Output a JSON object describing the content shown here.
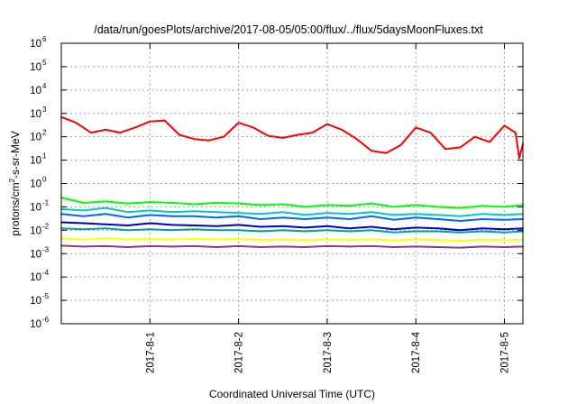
{
  "chart_data": {
    "type": "line",
    "title": "/data/run/goesPlots/archive/2017-08-05/05:00/flux/../flux/5daysMoonFluxes.txt",
    "xlabel": "Coordinated Universal Time (UTC)",
    "ylabel": "protons/cm²-s-sr-MeV",
    "ylabel_parts": {
      "pre": "protons/cm",
      "sup": "2",
      "post": "-s-sr-MeV"
    },
    "yscale": "log",
    "ylim": [
      1e-06,
      1000000.0
    ],
    "xlim": [
      "2017-07-31 00:00",
      "2017-08-05 05:00"
    ],
    "grid": true,
    "x_ticks": [
      {
        "value": "2017-08-01 00:00",
        "label": "2017-8-1"
      },
      {
        "value": "2017-08-02 00:00",
        "label": "2017-8-2"
      },
      {
        "value": "2017-08-03 00:00",
        "label": "2017-8-3"
      },
      {
        "value": "2017-08-04 00:00",
        "label": "2017-8-4"
      },
      {
        "value": "2017-08-05 00:00",
        "label": "2017-8-5"
      }
    ],
    "y_ticks": [
      {
        "value": 1e-06,
        "base": "10",
        "exp": "-6"
      },
      {
        "value": 1e-05,
        "base": "10",
        "exp": "-5"
      },
      {
        "value": 0.0001,
        "base": "10",
        "exp": "-4"
      },
      {
        "value": 0.001,
        "base": "10",
        "exp": "-3"
      },
      {
        "value": 0.01,
        "base": "10",
        "exp": "-2"
      },
      {
        "value": 0.1,
        "base": "10",
        "exp": "-1"
      },
      {
        "value": 1,
        "base": "10",
        "exp": "0"
      },
      {
        "value": 10,
        "base": "10",
        "exp": "1"
      },
      {
        "value": 100,
        "base": "10",
        "exp": "2"
      },
      {
        "value": 1000,
        "base": "10",
        "exp": "3"
      },
      {
        "value": 10000,
        "base": "10",
        "exp": "4"
      },
      {
        "value": 100000,
        "base": "10",
        "exp": "5"
      },
      {
        "value": 1000000,
        "base": "10",
        "exp": "6"
      }
    ],
    "series": [
      {
        "color": "#ff0000",
        "x": [
          "2017-07-31 00:00",
          "2017-07-31 04:00",
          "2017-07-31 08:00",
          "2017-07-31 12:00",
          "2017-07-31 16:00",
          "2017-07-31 20:00",
          "2017-08-01 00:00",
          "2017-08-01 04:00",
          "2017-08-01 08:00",
          "2017-08-01 12:00",
          "2017-08-01 16:00",
          "2017-08-01 20:00",
          "2017-08-02 00:00",
          "2017-08-02 04:00",
          "2017-08-02 08:00",
          "2017-08-02 12:00",
          "2017-08-02 16:00",
          "2017-08-02 20:00",
          "2017-08-03 00:00",
          "2017-08-03 04:00",
          "2017-08-03 08:00",
          "2017-08-03 12:00",
          "2017-08-03 16:00",
          "2017-08-03 20:00",
          "2017-08-04 00:00",
          "2017-08-04 04:00",
          "2017-08-04 08:00",
          "2017-08-04 12:00",
          "2017-08-04 16:00",
          "2017-08-04 20:00",
          "2017-08-05 00:00",
          "2017-08-05 03:00",
          "2017-08-05 04:00",
          "2017-08-05 05:00"
        ],
        "values": [
          700,
          400,
          150,
          200,
          150,
          250,
          450,
          500,
          120,
          80,
          70,
          100,
          400,
          250,
          110,
          90,
          120,
          150,
          350,
          200,
          80,
          25,
          20,
          45,
          250,
          150,
          30,
          35,
          100,
          60,
          300,
          150,
          12,
          50
        ]
      },
      {
        "color": "#00ff00",
        "x": [
          "2017-07-31 00:00",
          "2017-07-31 06:00",
          "2017-07-31 12:00",
          "2017-07-31 18:00",
          "2017-08-01 00:00",
          "2017-08-01 06:00",
          "2017-08-01 12:00",
          "2017-08-01 18:00",
          "2017-08-02 00:00",
          "2017-08-02 06:00",
          "2017-08-02 12:00",
          "2017-08-02 18:00",
          "2017-08-03 00:00",
          "2017-08-03 06:00",
          "2017-08-03 12:00",
          "2017-08-03 18:00",
          "2017-08-04 00:00",
          "2017-08-04 06:00",
          "2017-08-04 12:00",
          "2017-08-04 18:00",
          "2017-08-05 00:00",
          "2017-08-05 05:00"
        ],
        "values": [
          0.25,
          0.15,
          0.17,
          0.14,
          0.16,
          0.15,
          0.13,
          0.15,
          0.14,
          0.12,
          0.13,
          0.1,
          0.12,
          0.11,
          0.14,
          0.1,
          0.12,
          0.1,
          0.09,
          0.11,
          0.1,
          0.12
        ]
      },
      {
        "color": "#00c8c8",
        "x": [
          "2017-07-31 00:00",
          "2017-07-31 06:00",
          "2017-07-31 12:00",
          "2017-07-31 18:00",
          "2017-08-01 00:00",
          "2017-08-01 06:00",
          "2017-08-01 12:00",
          "2017-08-01 18:00",
          "2017-08-02 00:00",
          "2017-08-02 06:00",
          "2017-08-02 12:00",
          "2017-08-02 18:00",
          "2017-08-03 00:00",
          "2017-08-03 06:00",
          "2017-08-03 12:00",
          "2017-08-03 18:00",
          "2017-08-04 00:00",
          "2017-08-04 06:00",
          "2017-08-04 12:00",
          "2017-08-04 18:00",
          "2017-08-05 00:00",
          "2017-08-05 05:00"
        ],
        "values": [
          0.08,
          0.07,
          0.09,
          0.06,
          0.07,
          0.06,
          0.065,
          0.06,
          0.055,
          0.05,
          0.06,
          0.045,
          0.055,
          0.05,
          0.06,
          0.045,
          0.05,
          0.045,
          0.04,
          0.05,
          0.045,
          0.05
        ]
      },
      {
        "color": "#0064ff",
        "x": [
          "2017-07-31 00:00",
          "2017-07-31 06:00",
          "2017-07-31 12:00",
          "2017-07-31 18:00",
          "2017-08-01 00:00",
          "2017-08-01 06:00",
          "2017-08-01 12:00",
          "2017-08-01 18:00",
          "2017-08-02 00:00",
          "2017-08-02 06:00",
          "2017-08-02 12:00",
          "2017-08-02 18:00",
          "2017-08-03 00:00",
          "2017-08-03 06:00",
          "2017-08-03 12:00",
          "2017-08-03 18:00",
          "2017-08-04 00:00",
          "2017-08-04 06:00",
          "2017-08-04 12:00",
          "2017-08-04 18:00",
          "2017-08-05 00:00",
          "2017-08-05 05:00"
        ],
        "values": [
          0.05,
          0.04,
          0.05,
          0.035,
          0.045,
          0.04,
          0.04,
          0.035,
          0.04,
          0.03,
          0.035,
          0.03,
          0.035,
          0.03,
          0.04,
          0.028,
          0.035,
          0.03,
          0.025,
          0.03,
          0.028,
          0.03
        ]
      },
      {
        "color": "#0000c8",
        "x": [
          "2017-07-31 00:00",
          "2017-07-31 06:00",
          "2017-07-31 12:00",
          "2017-07-31 18:00",
          "2017-08-01 00:00",
          "2017-08-01 06:00",
          "2017-08-01 12:00",
          "2017-08-01 18:00",
          "2017-08-02 00:00",
          "2017-08-02 06:00",
          "2017-08-02 12:00",
          "2017-08-02 18:00",
          "2017-08-03 00:00",
          "2017-08-03 06:00",
          "2017-08-03 12:00",
          "2017-08-03 18:00",
          "2017-08-04 00:00",
          "2017-08-04 06:00",
          "2017-08-04 12:00",
          "2017-08-04 18:00",
          "2017-08-05 00:00",
          "2017-08-05 05:00"
        ],
        "values": [
          0.022,
          0.02,
          0.018,
          0.016,
          0.02,
          0.017,
          0.016,
          0.015,
          0.017,
          0.014,
          0.015,
          0.013,
          0.015,
          0.012,
          0.014,
          0.011,
          0.013,
          0.012,
          0.01,
          0.012,
          0.011,
          0.012
        ]
      },
      {
        "color": "#00a0a0",
        "x": [
          "2017-07-31 00:00",
          "2017-07-31 06:00",
          "2017-07-31 12:00",
          "2017-07-31 18:00",
          "2017-08-01 00:00",
          "2017-08-01 06:00",
          "2017-08-01 12:00",
          "2017-08-01 18:00",
          "2017-08-02 00:00",
          "2017-08-02 06:00",
          "2017-08-02 12:00",
          "2017-08-02 18:00",
          "2017-08-03 00:00",
          "2017-08-03 06:00",
          "2017-08-03 12:00",
          "2017-08-03 18:00",
          "2017-08-04 00:00",
          "2017-08-04 06:00",
          "2017-08-04 12:00",
          "2017-08-04 18:00",
          "2017-08-05 00:00",
          "2017-08-05 05:00"
        ],
        "values": [
          0.012,
          0.011,
          0.012,
          0.01,
          0.011,
          0.01,
          0.011,
          0.01,
          0.01,
          0.009,
          0.01,
          0.009,
          0.01,
          0.009,
          0.01,
          0.008,
          0.009,
          0.009,
          0.008,
          0.009,
          0.008,
          0.009
        ]
      },
      {
        "color": "#ffff00",
        "x": [
          "2017-07-31 00:00",
          "2017-07-31 06:00",
          "2017-07-31 12:00",
          "2017-07-31 18:00",
          "2017-08-01 00:00",
          "2017-08-01 06:00",
          "2017-08-01 12:00",
          "2017-08-01 18:00",
          "2017-08-02 00:00",
          "2017-08-02 06:00",
          "2017-08-02 12:00",
          "2017-08-02 18:00",
          "2017-08-03 00:00",
          "2017-08-03 06:00",
          "2017-08-03 12:00",
          "2017-08-03 18:00",
          "2017-08-04 00:00",
          "2017-08-04 06:00",
          "2017-08-04 12:00",
          "2017-08-04 18:00",
          "2017-08-05 00:00",
          "2017-08-05 05:00"
        ],
        "values": [
          0.0045,
          0.004,
          0.0045,
          0.004,
          0.0042,
          0.004,
          0.0043,
          0.004,
          0.0042,
          0.0038,
          0.004,
          0.0037,
          0.004,
          0.0038,
          0.0041,
          0.0036,
          0.004,
          0.0038,
          0.0035,
          0.0039,
          0.0037,
          0.004
        ]
      },
      {
        "color": "#8c3c78",
        "x": [
          "2017-07-31 00:00",
          "2017-07-31 06:00",
          "2017-07-31 12:00",
          "2017-07-31 18:00",
          "2017-08-01 00:00",
          "2017-08-01 06:00",
          "2017-08-01 12:00",
          "2017-08-01 18:00",
          "2017-08-02 00:00",
          "2017-08-02 06:00",
          "2017-08-02 12:00",
          "2017-08-02 18:00",
          "2017-08-03 00:00",
          "2017-08-03 06:00",
          "2017-08-03 12:00",
          "2017-08-03 18:00",
          "2017-08-04 00:00",
          "2017-08-04 06:00",
          "2017-08-04 12:00",
          "2017-08-04 18:00",
          "2017-08-05 00:00",
          "2017-08-05 05:00"
        ],
        "values": [
          0.0022,
          0.002,
          0.0021,
          0.0019,
          0.0021,
          0.002,
          0.0021,
          0.0019,
          0.0021,
          0.0019,
          0.002,
          0.0019,
          0.0021,
          0.002,
          0.0021,
          0.0019,
          0.002,
          0.0019,
          0.0018,
          0.002,
          0.0019,
          0.002
        ]
      }
    ]
  }
}
